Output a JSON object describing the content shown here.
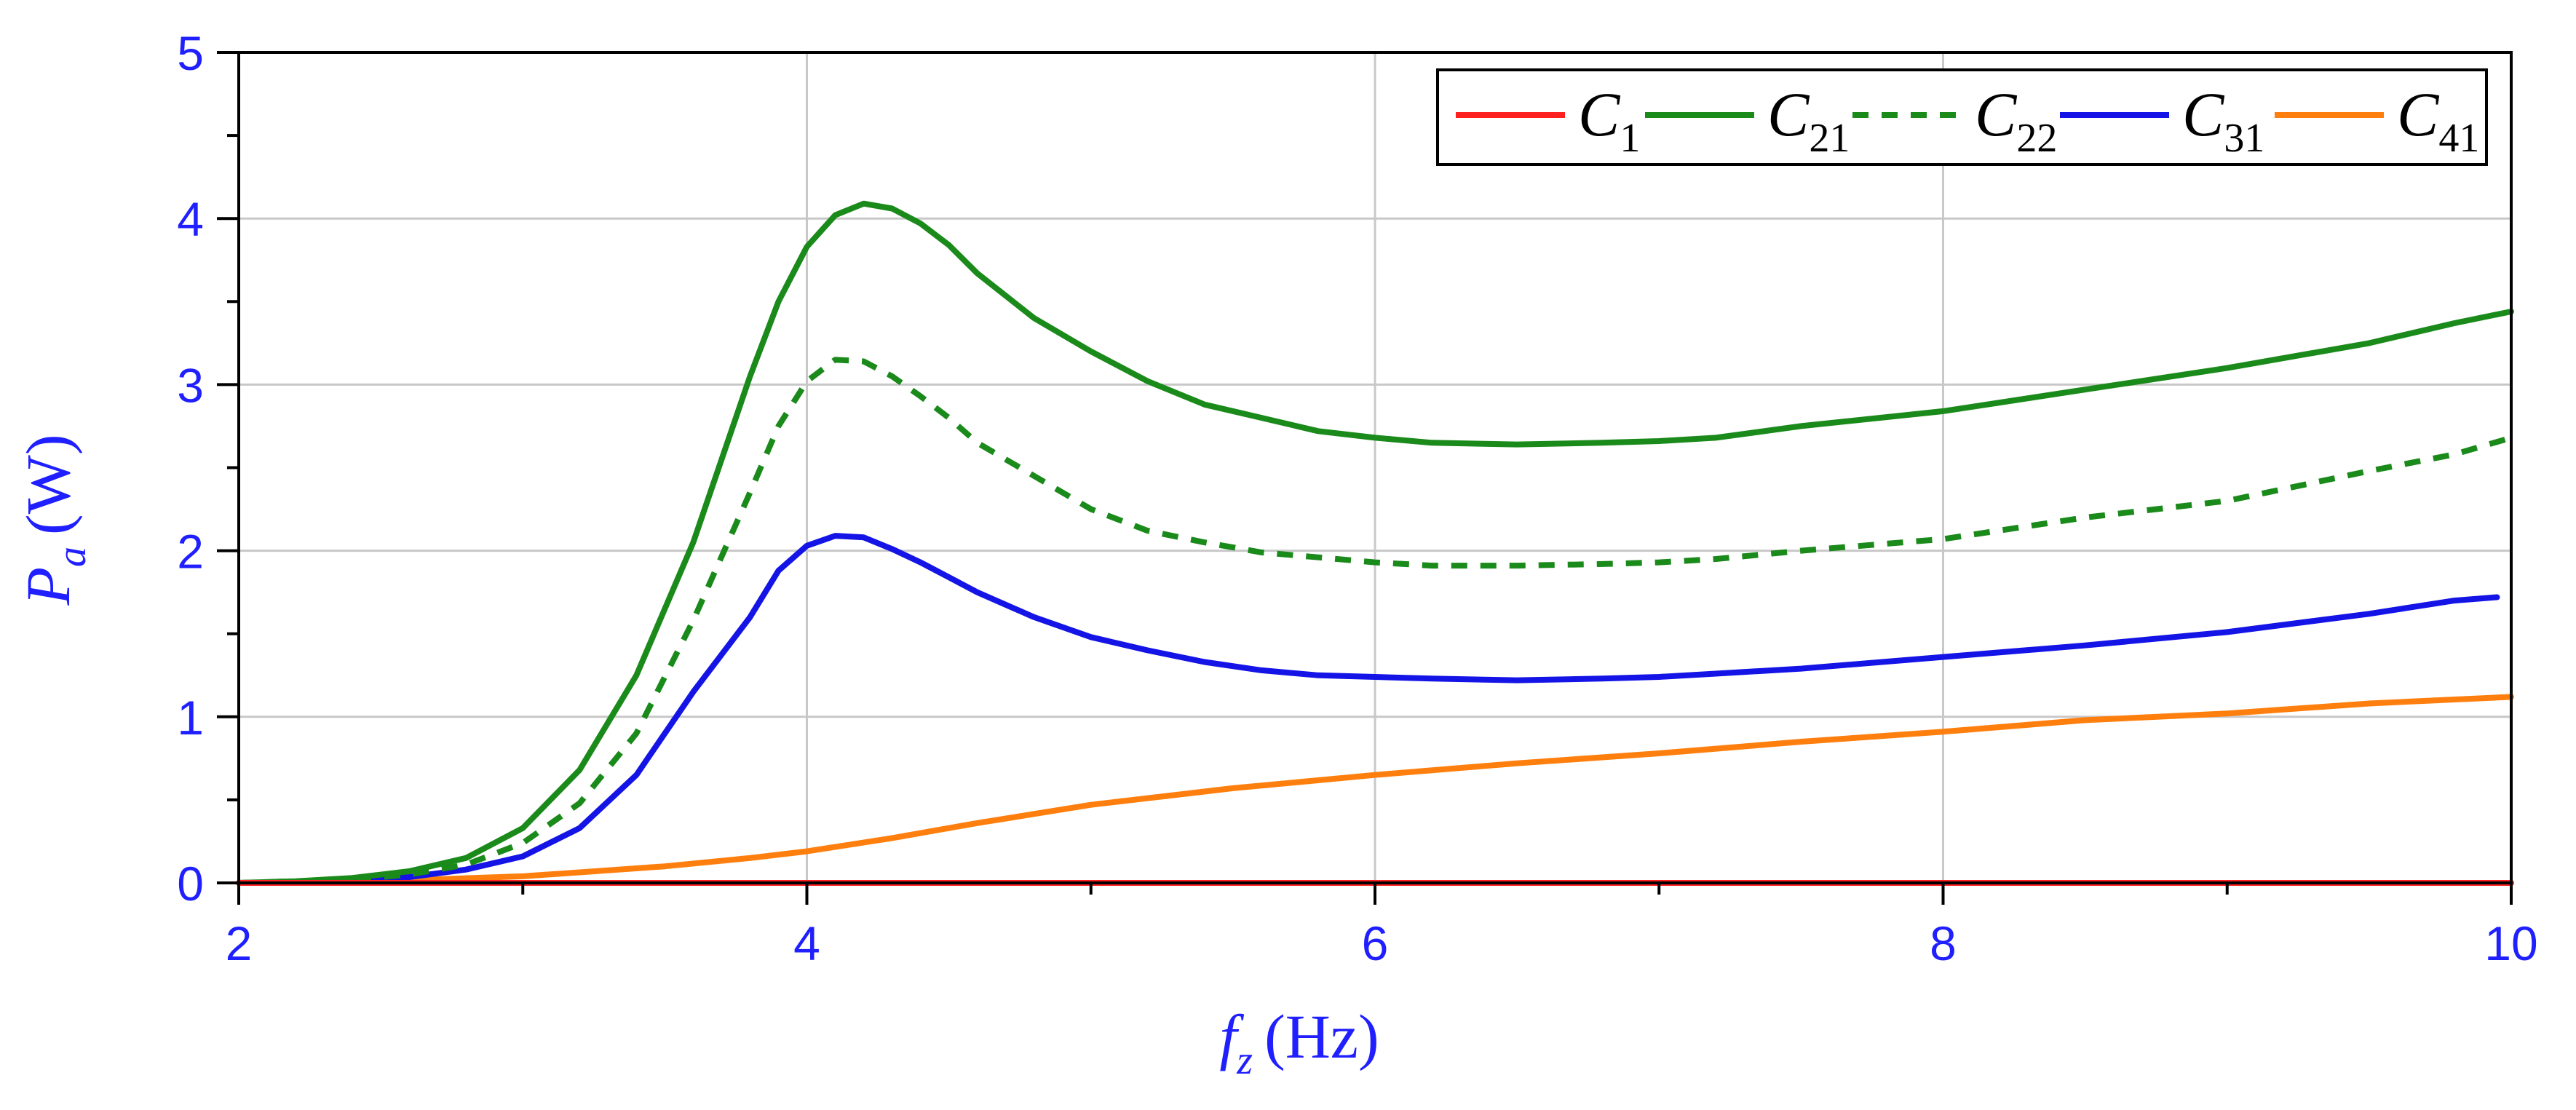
{
  "chart_data": {
    "type": "line",
    "xlim": [
      2,
      10
    ],
    "ylim": [
      0,
      5
    ],
    "x_ticks": [
      "2",
      "4",
      "6",
      "8",
      "10"
    ],
    "y_ticks": [
      "0",
      "1",
      "2",
      "3",
      "4",
      "5"
    ],
    "xlabel": {
      "symbol": "f",
      "sub": "z",
      "unit": "(Hz)"
    },
    "ylabel": {
      "symbol": "P",
      "sub": "a",
      "unit": "(W)"
    },
    "grid": true,
    "legend_position": "top-right",
    "series": [
      {
        "name": "C1",
        "label_main": "C",
        "label_sub": "1",
        "color": "#ff2020",
        "dash": false,
        "x": [
          2,
          3,
          4,
          5,
          6,
          7,
          8,
          9,
          10
        ],
        "y": [
          0,
          0,
          0,
          0,
          0,
          0,
          0,
          0,
          0
        ]
      },
      {
        "name": "C21",
        "label_main": "C",
        "label_sub": "21",
        "color": "#1a8a1a",
        "dash": false,
        "x": [
          2,
          2.2,
          2.4,
          2.6,
          2.8,
          3.0,
          3.2,
          3.4,
          3.6,
          3.8,
          3.9,
          4.0,
          4.1,
          4.2,
          4.3,
          4.4,
          4.5,
          4.6,
          4.8,
          5.0,
          5.2,
          5.4,
          5.6,
          5.8,
          6.0,
          6.2,
          6.5,
          6.8,
          7.0,
          7.2,
          7.5,
          8.0,
          8.5,
          9.0,
          9.5,
          9.8,
          10.0
        ],
        "y": [
          0,
          0.01,
          0.03,
          0.07,
          0.15,
          0.33,
          0.68,
          1.25,
          2.05,
          3.05,
          3.5,
          3.83,
          4.02,
          4.09,
          4.06,
          3.97,
          3.84,
          3.67,
          3.4,
          3.2,
          3.02,
          2.88,
          2.8,
          2.72,
          2.68,
          2.65,
          2.64,
          2.65,
          2.66,
          2.68,
          2.75,
          2.84,
          2.97,
          3.1,
          3.25,
          3.37,
          3.44
        ]
      },
      {
        "name": "C22",
        "label_main": "C",
        "label_sub": "22",
        "color": "#1a8a1a",
        "dash": true,
        "x": [
          2,
          2.2,
          2.4,
          2.6,
          2.8,
          3.0,
          3.2,
          3.4,
          3.6,
          3.8,
          3.9,
          4.0,
          4.1,
          4.2,
          4.3,
          4.4,
          4.5,
          4.6,
          4.8,
          5.0,
          5.2,
          5.4,
          5.6,
          5.8,
          6.0,
          6.2,
          6.5,
          6.8,
          7.0,
          7.2,
          7.5,
          8.0,
          8.5,
          9.0,
          9.5,
          9.8,
          10.0
        ],
        "y": [
          0,
          0.01,
          0.02,
          0.05,
          0.11,
          0.24,
          0.48,
          0.9,
          1.58,
          2.35,
          2.75,
          3.02,
          3.15,
          3.14,
          3.05,
          2.93,
          2.8,
          2.65,
          2.45,
          2.25,
          2.12,
          2.05,
          1.99,
          1.96,
          1.93,
          1.91,
          1.91,
          1.92,
          1.93,
          1.95,
          2.0,
          2.07,
          2.2,
          2.3,
          2.48,
          2.58,
          2.68
        ]
      },
      {
        "name": "C31",
        "label_main": "C",
        "label_sub": "31",
        "color": "#1414e6",
        "dash": false,
        "x": [
          2,
          2.2,
          2.4,
          2.6,
          2.8,
          3.0,
          3.2,
          3.4,
          3.6,
          3.8,
          3.9,
          4.0,
          4.1,
          4.2,
          4.3,
          4.4,
          4.5,
          4.6,
          4.8,
          5.0,
          5.2,
          5.4,
          5.6,
          5.8,
          6.0,
          6.2,
          6.5,
          6.8,
          7.0,
          7.2,
          7.5,
          8.0,
          8.5,
          9.0,
          9.5,
          9.8,
          9.95
        ],
        "y": [
          0,
          0.005,
          0.015,
          0.035,
          0.08,
          0.16,
          0.33,
          0.65,
          1.15,
          1.6,
          1.88,
          2.03,
          2.09,
          2.08,
          2.01,
          1.93,
          1.84,
          1.75,
          1.6,
          1.48,
          1.4,
          1.33,
          1.28,
          1.25,
          1.24,
          1.23,
          1.22,
          1.23,
          1.24,
          1.26,
          1.29,
          1.36,
          1.43,
          1.51,
          1.62,
          1.7,
          1.72
        ]
      },
      {
        "name": "C41",
        "label_main": "C",
        "label_sub": "41",
        "color": "#ff7f0e",
        "dash": false,
        "x": [
          2,
          2.5,
          3.0,
          3.5,
          3.8,
          4.0,
          4.3,
          4.6,
          5.0,
          5.5,
          6.0,
          6.5,
          7.0,
          7.5,
          8.0,
          8.5,
          9.0,
          9.5,
          10.0
        ],
        "y": [
          0,
          0.01,
          0.04,
          0.1,
          0.15,
          0.19,
          0.27,
          0.36,
          0.47,
          0.57,
          0.65,
          0.72,
          0.78,
          0.85,
          0.91,
          0.98,
          1.02,
          1.08,
          1.12
        ]
      }
    ]
  }
}
